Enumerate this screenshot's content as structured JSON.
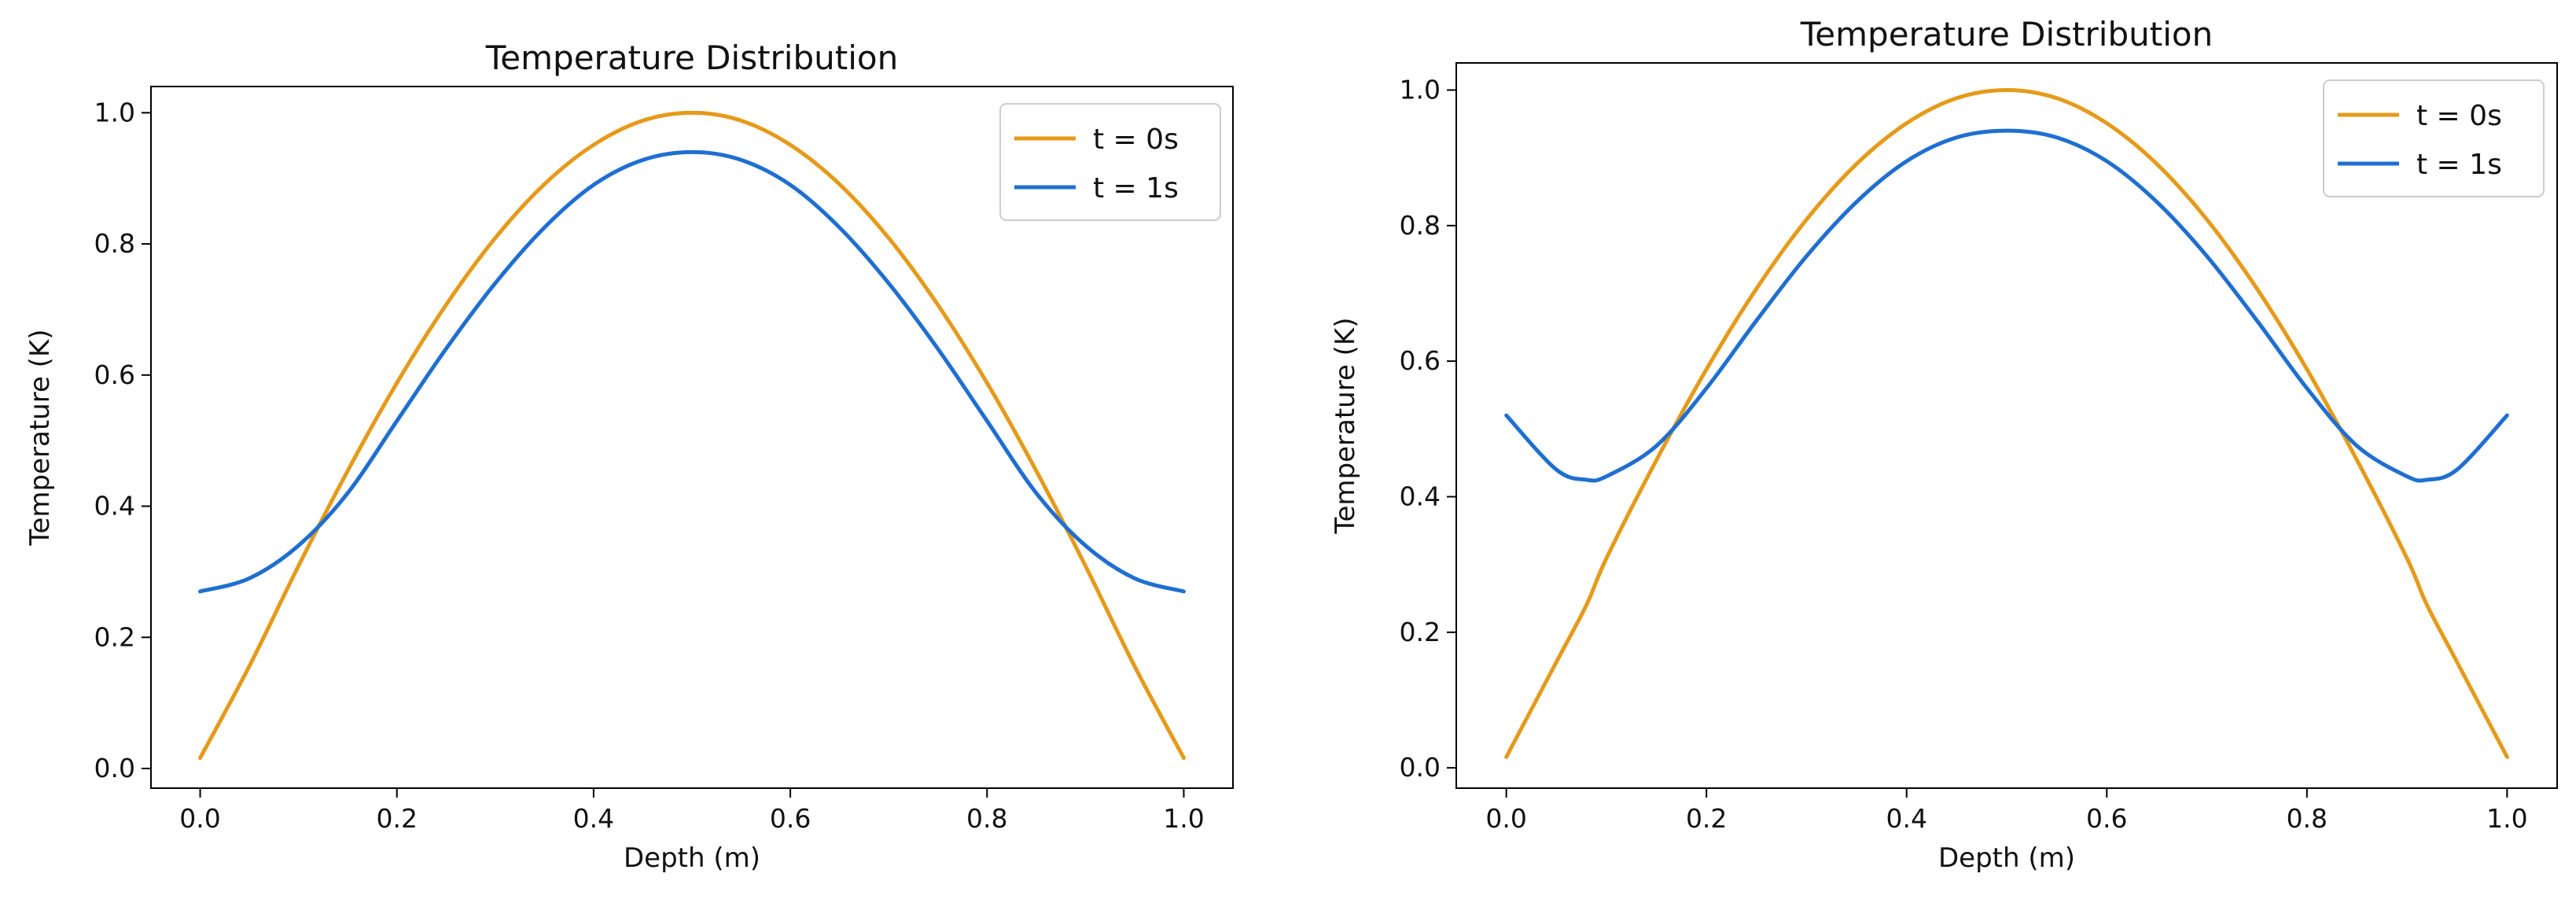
{
  "chart_data": [
    {
      "type": "line",
      "title": "Temperature Distribution",
      "xlabel": "Depth (m)",
      "ylabel": "Temperature (K)",
      "xlim": [
        -0.05,
        1.05
      ],
      "ylim": [
        -0.03,
        1.04
      ],
      "xticks": [
        0.0,
        0.2,
        0.4,
        0.6,
        0.8,
        1.0
      ],
      "xtick_labels": [
        "0.0",
        "0.2",
        "0.4",
        "0.6",
        "0.8",
        "1.0"
      ],
      "yticks": [
        0.0,
        0.2,
        0.4,
        0.6,
        0.8,
        1.0
      ],
      "ytick_labels": [
        "0.0",
        "0.2",
        "0.4",
        "0.6",
        "0.8",
        "1.0"
      ],
      "grid": false,
      "legend_position": "top-right",
      "x": [
        0.0,
        0.05,
        0.1,
        0.15,
        0.2,
        0.25,
        0.3,
        0.35,
        0.4,
        0.45,
        0.5,
        0.55,
        0.6,
        0.65,
        0.7,
        0.75,
        0.8,
        0.85,
        0.9,
        0.95,
        1.0
      ],
      "series": [
        {
          "name": "t = 0s",
          "color": "#E69A1A",
          "values": [
            0.016,
            0.156,
            0.309,
            0.454,
            0.588,
            0.707,
            0.809,
            0.891,
            0.951,
            0.988,
            1.0,
            0.988,
            0.951,
            0.891,
            0.809,
            0.707,
            0.588,
            0.454,
            0.309,
            0.156,
            0.016
          ]
        },
        {
          "name": "t = 1s",
          "color": "#1F6FD1",
          "values": [
            0.27,
            0.29,
            0.34,
            0.42,
            0.53,
            0.64,
            0.74,
            0.825,
            0.89,
            0.928,
            0.94,
            0.928,
            0.89,
            0.825,
            0.74,
            0.64,
            0.53,
            0.42,
            0.34,
            0.29,
            0.27
          ]
        }
      ]
    },
    {
      "type": "line",
      "title": "Temperature Distribution",
      "xlabel": "Depth (m)",
      "ylabel": "Temperature (K)",
      "xlim": [
        -0.05,
        1.05
      ],
      "ylim": [
        -0.03,
        1.04
      ],
      "xticks": [
        0.0,
        0.2,
        0.4,
        0.6,
        0.8,
        1.0
      ],
      "xtick_labels": [
        "0.0",
        "0.2",
        "0.4",
        "0.6",
        "0.8",
        "1.0"
      ],
      "yticks": [
        0.0,
        0.2,
        0.4,
        0.6,
        0.8,
        1.0
      ],
      "ytick_labels": [
        "0.0",
        "0.2",
        "0.4",
        "0.6",
        "0.8",
        "1.0"
      ],
      "grid": false,
      "legend_position": "top-right",
      "x": [
        0.0,
        0.05,
        0.08,
        0.1,
        0.15,
        0.2,
        0.25,
        0.3,
        0.35,
        0.4,
        0.45,
        0.5,
        0.55,
        0.6,
        0.65,
        0.7,
        0.75,
        0.8,
        0.85,
        0.9,
        0.92,
        0.95,
        1.0
      ],
      "series": [
        {
          "name": "t = 0s",
          "color": "#E69A1A",
          "values": [
            0.016,
            0.156,
            0.24,
            0.309,
            0.454,
            0.588,
            0.707,
            0.809,
            0.891,
            0.951,
            0.988,
            1.0,
            0.988,
            0.951,
            0.891,
            0.809,
            0.707,
            0.588,
            0.454,
            0.309,
            0.24,
            0.156,
            0.016
          ]
        },
        {
          "name": "t = 1s",
          "color": "#1F6FD1",
          "values": [
            0.52,
            0.44,
            0.425,
            0.43,
            0.475,
            0.56,
            0.66,
            0.755,
            0.835,
            0.895,
            0.93,
            0.94,
            0.93,
            0.895,
            0.835,
            0.755,
            0.66,
            0.56,
            0.475,
            0.43,
            0.425,
            0.44,
            0.52
          ]
        }
      ]
    }
  ]
}
